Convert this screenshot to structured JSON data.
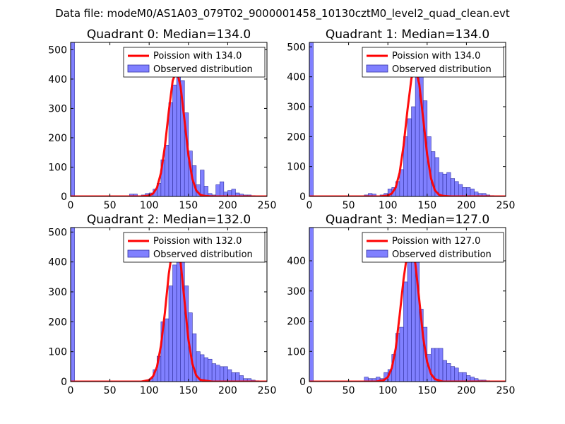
{
  "suptitle": "Data file: modeM0/AS1A03_079T02_9000001458_10130cztM0_level2_quad_clean.evt",
  "colors": {
    "bar_fill": "#8080ff",
    "bar_edge": "#3030a0",
    "line": "#ff0000",
    "axes": "#000000"
  },
  "chart_data": [
    {
      "type": "bar",
      "title": "Quadrant 0: Median=134.0",
      "xlabel": "",
      "ylabel": "",
      "xlim": [
        0,
        250
      ],
      "ylim": [
        0,
        525
      ],
      "xticks": [
        0,
        50,
        100,
        150,
        200,
        250
      ],
      "yticks": [
        0,
        100,
        200,
        300,
        400,
        500
      ],
      "legend": {
        "loc": "upper right",
        "line_label": "Poission with 134.0",
        "bar_label": "Observed distribution"
      },
      "series": [
        {
          "name": "Observed distribution",
          "kind": "histogram",
          "bin_width": 5,
          "bins": [
            0,
            75,
            80,
            90,
            95,
            100,
            105,
            110,
            115,
            120,
            125,
            130,
            135,
            140,
            145,
            150,
            155,
            160,
            165,
            170,
            175,
            180,
            185,
            190,
            195,
            200,
            205,
            210,
            215,
            220,
            225,
            230
          ],
          "values": [
            525,
            8,
            8,
            5,
            10,
            12,
            25,
            45,
            125,
            175,
            320,
            380,
            440,
            395,
            285,
            155,
            105,
            40,
            90,
            35,
            10,
            5,
            40,
            50,
            15,
            20,
            25,
            12,
            8,
            5,
            5,
            3
          ]
        },
        {
          "name": "Poission with 134.0",
          "kind": "line",
          "x": [
            0,
            90,
            100,
            105,
            110,
            115,
            120,
            125,
            130,
            135,
            140,
            145,
            150,
            155,
            160,
            165,
            170,
            180,
            250
          ],
          "y": [
            0,
            0,
            3,
            10,
            30,
            80,
            170,
            290,
            395,
            430,
            375,
            260,
            140,
            60,
            20,
            6,
            2,
            0,
            0
          ]
        }
      ]
    },
    {
      "type": "bar",
      "title": "Quadrant 1: Median=134.0",
      "xlabel": "",
      "ylabel": "",
      "xlim": [
        0,
        250
      ],
      "ylim": [
        0,
        515
      ],
      "xticks": [
        0,
        50,
        100,
        150,
        200,
        250
      ],
      "yticks": [
        0,
        100,
        200,
        300,
        400,
        500
      ],
      "legend": {
        "loc": "upper right",
        "line_label": "Poission with 134.0",
        "bar_label": "Observed distribution"
      },
      "series": [
        {
          "name": "Observed distribution",
          "kind": "histogram",
          "bin_width": 5,
          "bins": [
            0,
            70,
            75,
            80,
            90,
            95,
            100,
            105,
            110,
            115,
            120,
            125,
            130,
            135,
            140,
            145,
            150,
            155,
            160,
            165,
            170,
            175,
            180,
            185,
            190,
            195,
            200,
            205,
            210,
            215,
            220,
            225,
            230
          ],
          "values": [
            515,
            5,
            10,
            8,
            5,
            10,
            25,
            30,
            50,
            90,
            200,
            260,
            300,
            410,
            420,
            320,
            200,
            150,
            130,
            80,
            75,
            80,
            60,
            50,
            40,
            30,
            30,
            25,
            15,
            10,
            10,
            5,
            3
          ]
        },
        {
          "name": "Poission with 134.0",
          "kind": "line",
          "x": [
            0,
            90,
            100,
            105,
            110,
            115,
            120,
            125,
            130,
            135,
            140,
            145,
            150,
            155,
            160,
            165,
            170,
            180,
            250
          ],
          "y": [
            0,
            0,
            3,
            10,
            30,
            80,
            170,
            290,
            395,
            430,
            375,
            260,
            140,
            60,
            20,
            6,
            2,
            0,
            0
          ]
        }
      ]
    },
    {
      "type": "bar",
      "title": "Quadrant 2: Median=132.0",
      "xlabel": "",
      "ylabel": "",
      "xlim": [
        0,
        250
      ],
      "ylim": [
        0,
        515
      ],
      "xticks": [
        0,
        50,
        100,
        150,
        200,
        250
      ],
      "yticks": [
        0,
        100,
        200,
        300,
        400,
        500
      ],
      "legend": {
        "loc": "upper right",
        "line_label": "Poission with 132.0",
        "bar_label": "Observed distribution"
      },
      "series": [
        {
          "name": "Observed distribution",
          "kind": "histogram",
          "bin_width": 5,
          "bins": [
            0,
            95,
            100,
            105,
            110,
            115,
            120,
            125,
            130,
            135,
            140,
            145,
            150,
            155,
            160,
            165,
            170,
            175,
            180,
            185,
            190,
            195,
            200,
            205,
            210,
            215,
            220,
            225,
            230,
            235
          ],
          "values": [
            515,
            5,
            10,
            40,
            85,
            200,
            210,
            320,
            390,
            450,
            430,
            320,
            230,
            160,
            100,
            90,
            80,
            75,
            60,
            55,
            50,
            50,
            40,
            30,
            30,
            20,
            10,
            10,
            5,
            3
          ]
        },
        {
          "name": "Poission with 132.0",
          "kind": "line",
          "x": [
            0,
            90,
            100,
            105,
            110,
            115,
            120,
            125,
            130,
            135,
            140,
            145,
            150,
            155,
            160,
            165,
            180,
            250
          ],
          "y": [
            0,
            0,
            5,
            18,
            50,
            120,
            230,
            360,
            450,
            470,
            400,
            270,
            140,
            60,
            20,
            6,
            0,
            0
          ]
        }
      ]
    },
    {
      "type": "bar",
      "title": "Quadrant 3: Median=127.0",
      "xlabel": "",
      "ylabel": "",
      "xlim": [
        0,
        250
      ],
      "ylim": [
        0,
        510
      ],
      "xticks": [
        0,
        50,
        100,
        150,
        200,
        250
      ],
      "yticks": [
        0,
        100,
        200,
        300,
        400
      ],
      "legend": {
        "loc": "upper right",
        "line_label": "Poission with 127.0",
        "bar_label": "Observed distribution"
      },
      "series": [
        {
          "name": "Observed distribution",
          "kind": "histogram",
          "bin_width": 5,
          "bins": [
            0,
            70,
            75,
            80,
            85,
            90,
            95,
            100,
            105,
            110,
            115,
            120,
            125,
            130,
            135,
            140,
            145,
            150,
            155,
            160,
            165,
            170,
            175,
            180,
            185,
            190,
            195,
            200,
            205,
            210,
            215,
            220,
            225
          ],
          "values": [
            510,
            15,
            10,
            10,
            15,
            10,
            30,
            40,
            90,
            160,
            180,
            330,
            400,
            440,
            425,
            240,
            180,
            90,
            110,
            110,
            110,
            70,
            60,
            50,
            45,
            30,
            30,
            20,
            15,
            10,
            5,
            5,
            3
          ]
        },
        {
          "name": "Poission with 127.0",
          "kind": "line",
          "x": [
            0,
            85,
            95,
            100,
            105,
            110,
            115,
            120,
            125,
            130,
            135,
            140,
            145,
            150,
            155,
            160,
            170,
            250
          ],
          "y": [
            0,
            0,
            5,
            15,
            45,
            110,
            220,
            340,
            430,
            450,
            390,
            270,
            145,
            65,
            25,
            8,
            0,
            0
          ]
        }
      ]
    }
  ]
}
